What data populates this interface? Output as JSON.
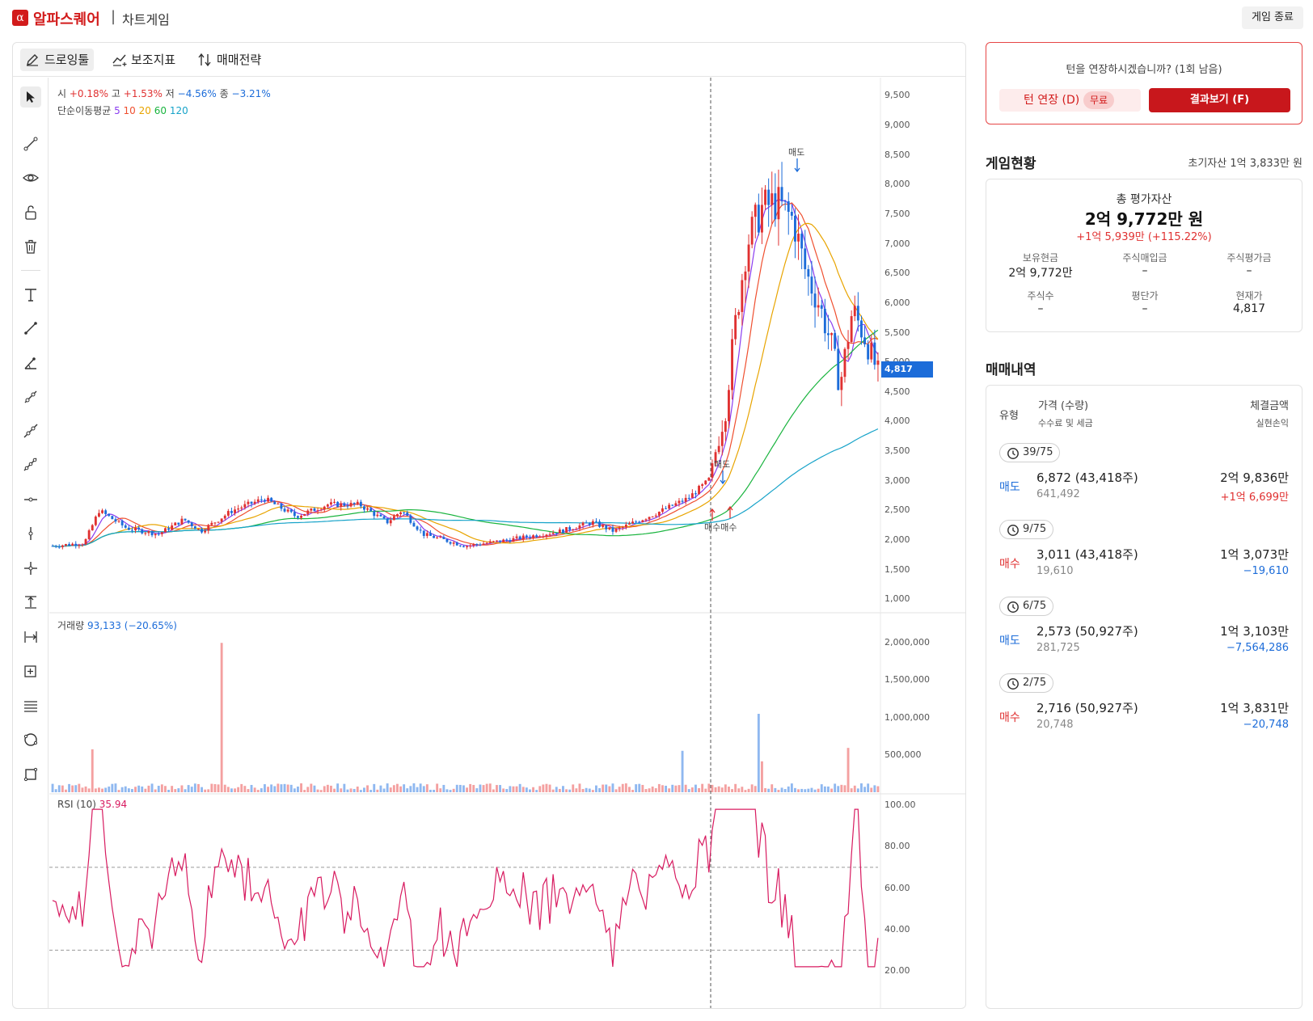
{
  "header": {
    "logo_glyph": "α",
    "brand": "알파스퀘어",
    "separator": "|",
    "subtitle": "차트게임",
    "end_button": "게임 종료"
  },
  "toolbar": {
    "drawing": "드로잉툴",
    "indicators": "보조지표",
    "strategy": "매매전략"
  },
  "side_tools": [
    "cursor-icon",
    "trendline-icon",
    "eye-icon",
    "unlock-icon",
    "trash-icon",
    "text-icon",
    "line-icon",
    "angle-icon",
    "ray-icon",
    "extended-line-icon",
    "parallel-line-icon",
    "horizontal-line-icon",
    "vertical-line-icon",
    "crosshair-icon",
    "price-range-icon",
    "date-range-icon",
    "zoom-box-icon",
    "fib-lines-icon",
    "circle-icon",
    "rectangle-icon"
  ],
  "legend": {
    "open_label": "시",
    "open_value": "+0.18%",
    "high_label": "고",
    "high_value": "+1.53%",
    "low_label": "저",
    "low_value": "−4.56%",
    "close_label": "종",
    "close_value": "−3.21%",
    "ma_label": "단순이동평균",
    "ma_periods": [
      "5",
      "10",
      "20",
      "60",
      "120"
    ],
    "volume_label": "거래량",
    "volume_value": "93,133 (−20.65%)",
    "rsi_label": "RSI",
    "rsi_period": "(10)",
    "rsi_value": "35.94"
  },
  "price_axis": [
    "9,500",
    "9,000",
    "8,500",
    "8,000",
    "7,500",
    "7,000",
    "6,500",
    "6,000",
    "5,500",
    "5,000",
    "4,500",
    "4,000",
    "3,500",
    "3,000",
    "2,500",
    "2,000",
    "1,500",
    "1,000"
  ],
  "volume_axis": [
    "2,000,000",
    "1,500,000",
    "1,000,000",
    "500,000"
  ],
  "rsi_axis": [
    "100.00",
    "80.00",
    "60.00",
    "40.00",
    "20.00"
  ],
  "current_price": "4,817",
  "markers": {
    "sell": "매도",
    "buy": "매수",
    "buy2": "매수매수"
  },
  "turn_prompt": {
    "question": "턴을 연장하시겠습니까? (1회 남음)",
    "extend_label": "턴 연장 (D)",
    "free_badge": "무료",
    "result_label": "결과보기 (F)"
  },
  "game_status": {
    "title": "게임현황",
    "initial_asset": "초기자산 1억 3,833만 원",
    "total_label": "총 평가자산",
    "total_value": "2억 9,772만 원",
    "total_change": "+1억 5,939만 (+115.22%)",
    "cells": [
      {
        "label": "보유현금",
        "value": "2억 9,772만"
      },
      {
        "label": "주식매입금",
        "value": "–"
      },
      {
        "label": "주식평가금",
        "value": "–"
      },
      {
        "label": "주식수",
        "value": "–"
      },
      {
        "label": "평단가",
        "value": "–"
      },
      {
        "label": "현재가",
        "value": "4,817"
      }
    ]
  },
  "trades": {
    "title": "매매내역",
    "header": {
      "type": "유형",
      "price": "가격 (수량)",
      "fee": "수수료 및 세금",
      "amount": "체결금액",
      "pnl": "실현손익"
    },
    "items": [
      {
        "turn": "39/75",
        "type": "매도",
        "price": "6,872 (43,418주)",
        "fee": "641,492",
        "amount": "2억 9,836만",
        "pnl": "+1억 6,699만"
      },
      {
        "turn": "9/75",
        "type": "매수",
        "price": "3,011 (43,418주)",
        "fee": "19,610",
        "amount": "1억 3,073만",
        "pnl": "−19,610"
      },
      {
        "turn": "6/75",
        "type": "매도",
        "price": "2,573 (50,927주)",
        "fee": "281,725",
        "amount": "1억 3,103만",
        "pnl": "−7,564,286"
      },
      {
        "turn": "2/75",
        "type": "매수",
        "price": "2,716 (50,927주)",
        "fee": "20,748",
        "amount": "1억 3,831만",
        "pnl": "−20,748"
      }
    ]
  },
  "colors": {
    "brand_red": "#d21b1b",
    "up": "#e03131",
    "down": "#1c6cd9",
    "ma5": "#8a3cf0",
    "ma10": "#ef4f2f",
    "ma20": "#e8a400",
    "ma60": "#19b43e",
    "ma120": "#17a3c9",
    "rsi": "#d81b60"
  }
}
